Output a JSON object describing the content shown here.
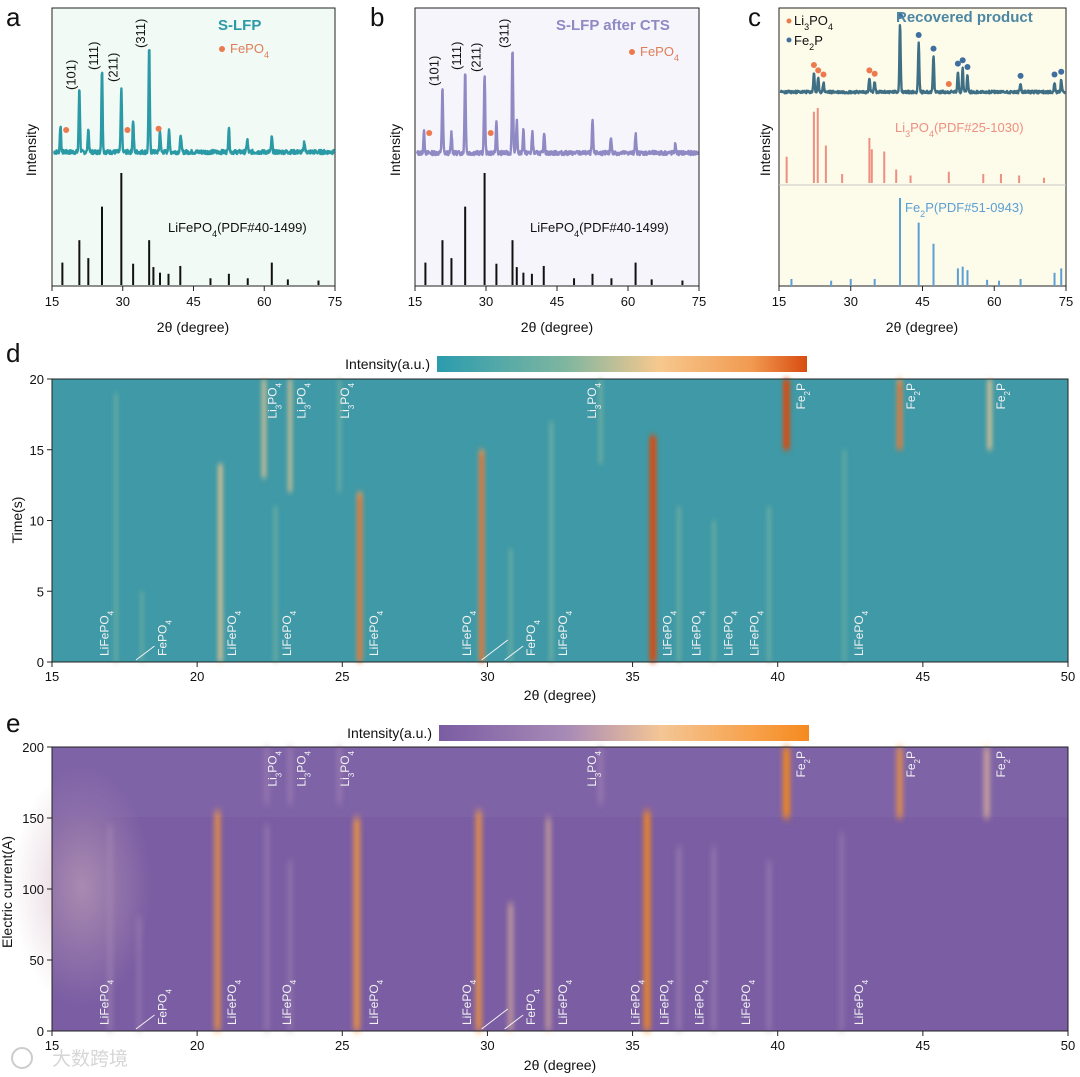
{
  "panels": {
    "a": {
      "letter": "a",
      "title": "S-LFP",
      "legend": "FePO4",
      "hkl": [
        "(101)",
        "(111)",
        "(211)",
        "(311)"
      ],
      "reference": "LiFePO4(PDF#40-1499)",
      "ylabel": "Intensity",
      "xlabel": "2θ (degree)",
      "xticks": [
        "15",
        "30",
        "45",
        "60",
        "75"
      ]
    },
    "b": {
      "letter": "b",
      "title": "S-LFP after CTS",
      "legend": "FePO4",
      "hkl": [
        "(101)",
        "(111)",
        "(211)",
        "(311)"
      ],
      "reference": "LiFePO4(PDF#40-1499)",
      "ylabel": "Intensity",
      "xlabel": "2θ (degree)",
      "xticks": [
        "15",
        "30",
        "45",
        "60",
        "75"
      ]
    },
    "c": {
      "letter": "c",
      "title": "Recovered product",
      "legend": [
        "Li3PO4",
        "Fe2P"
      ],
      "reference_1": "Li3PO4(PDF#25-1030)",
      "reference_2": "Fe2P(PDF#51-0943)",
      "ylabel": "Intensity",
      "xlabel": "2θ (degree)",
      "xticks": [
        "15",
        "30",
        "45",
        "60",
        "75"
      ]
    },
    "d": {
      "letter": "d",
      "colorbar_label": "Intensity(a.u.)",
      "ylabel": "Time(s)",
      "xlabel": "2θ (degree)",
      "xticks": [
        "15",
        "20",
        "25",
        "30",
        "35",
        "40",
        "45",
        "50"
      ],
      "yticks": [
        "0",
        "5",
        "10",
        "15",
        "20"
      ]
    },
    "e": {
      "letter": "e",
      "colorbar_label": "Intensity(a.u.)",
      "ylabel": "Electric current(A)",
      "xlabel": "2θ (degree)",
      "xticks": [
        "15",
        "20",
        "25",
        "30",
        "35",
        "40",
        "45",
        "50"
      ],
      "yticks": [
        "0",
        "50",
        "100",
        "150",
        "200"
      ]
    }
  },
  "watermark": "大数跨境",
  "colors": {
    "teal": "#2a9aa6",
    "lavender": "#8f89c4",
    "slate": "#3f6f84",
    "dot": "#ec7a4e",
    "ref_red": "#ef8f80",
    "ref_blue": "#5b9fd4",
    "map_d_bg": "#3f99a6",
    "map_e_bg": "#7a5da3"
  },
  "chart_data": [
    {
      "panel": "a",
      "type": "line",
      "title": "S-LFP",
      "xlabel": "2θ (degree)",
      "ylabel": "Intensity",
      "xlim": [
        15,
        75
      ],
      "peaks": [
        {
          "x": 16.8,
          "h": 0.25
        },
        {
          "x": 20.8,
          "h": 0.62
        },
        {
          "x": 22.7,
          "h": 0.22
        },
        {
          "x": 25.6,
          "h": 0.78
        },
        {
          "x": 29.7,
          "h": 0.6
        },
        {
          "x": 32.2,
          "h": 0.3
        },
        {
          "x": 35.6,
          "h": 1.0
        },
        {
          "x": 37.9,
          "h": 0.2
        },
        {
          "x": 39.8,
          "h": 0.22
        },
        {
          "x": 42.3,
          "h": 0.17
        },
        {
          "x": 52.5,
          "h": 0.24
        },
        {
          "x": 56.4,
          "h": 0.12
        },
        {
          "x": 61.6,
          "h": 0.14
        },
        {
          "x": 68.5,
          "h": 0.1
        }
      ],
      "fepo4_markers": [
        18.0,
        31.0,
        37.6
      ],
      "reference_sticks": [
        {
          "x": 17.2,
          "h": 0.2
        },
        {
          "x": 20.8,
          "h": 0.4
        },
        {
          "x": 22.7,
          "h": 0.24
        },
        {
          "x": 25.6,
          "h": 0.7
        },
        {
          "x": 29.7,
          "h": 1.0
        },
        {
          "x": 32.2,
          "h": 0.19
        },
        {
          "x": 35.6,
          "h": 0.4
        },
        {
          "x": 36.5,
          "h": 0.16
        },
        {
          "x": 37.9,
          "h": 0.11
        },
        {
          "x": 39.7,
          "h": 0.1
        },
        {
          "x": 42.2,
          "h": 0.17
        },
        {
          "x": 48.6,
          "h": 0.06
        },
        {
          "x": 52.5,
          "h": 0.1
        },
        {
          "x": 56.5,
          "h": 0.06
        },
        {
          "x": 61.6,
          "h": 0.2
        },
        {
          "x": 65.0,
          "h": 0.05
        },
        {
          "x": 71.5,
          "h": 0.04
        }
      ]
    },
    {
      "panel": "b",
      "type": "line",
      "title": "S-LFP after CTS",
      "xlabel": "2θ (degree)",
      "ylabel": "Intensity",
      "xlim": [
        15,
        75
      ],
      "peaks": [
        {
          "x": 16.9,
          "h": 0.2
        },
        {
          "x": 20.8,
          "h": 0.62
        },
        {
          "x": 22.7,
          "h": 0.2
        },
        {
          "x": 25.6,
          "h": 0.78
        },
        {
          "x": 29.7,
          "h": 0.75
        },
        {
          "x": 32.2,
          "h": 0.3
        },
        {
          "x": 35.6,
          "h": 1.0
        },
        {
          "x": 36.5,
          "h": 0.3
        },
        {
          "x": 37.9,
          "h": 0.22
        },
        {
          "x": 39.8,
          "h": 0.2
        },
        {
          "x": 42.3,
          "h": 0.2
        },
        {
          "x": 52.5,
          "h": 0.3
        },
        {
          "x": 56.4,
          "h": 0.16
        },
        {
          "x": 61.6,
          "h": 0.18
        },
        {
          "x": 70.0,
          "h": 0.08
        }
      ],
      "fepo4_markers": [
        18.0,
        31.0
      ],
      "reference_sticks": [
        {
          "x": 17.2,
          "h": 0.2
        },
        {
          "x": 20.8,
          "h": 0.4
        },
        {
          "x": 22.7,
          "h": 0.24
        },
        {
          "x": 25.6,
          "h": 0.7
        },
        {
          "x": 29.7,
          "h": 1.0
        },
        {
          "x": 32.2,
          "h": 0.19
        },
        {
          "x": 35.6,
          "h": 0.4
        },
        {
          "x": 36.5,
          "h": 0.16
        },
        {
          "x": 37.9,
          "h": 0.11
        },
        {
          "x": 39.7,
          "h": 0.1
        },
        {
          "x": 42.2,
          "h": 0.17
        },
        {
          "x": 48.6,
          "h": 0.06
        },
        {
          "x": 52.5,
          "h": 0.1
        },
        {
          "x": 56.5,
          "h": 0.06
        },
        {
          "x": 61.6,
          "h": 0.2
        },
        {
          "x": 65.0,
          "h": 0.05
        },
        {
          "x": 71.5,
          "h": 0.04
        }
      ]
    },
    {
      "panel": "c",
      "type": "line",
      "title": "Recovered product",
      "xlabel": "2θ (degree)",
      "ylabel": "Intensity",
      "xlim": [
        15,
        75
      ],
      "peaks": [
        {
          "x": 22.3,
          "h": 0.28
        },
        {
          "x": 23.2,
          "h": 0.2
        },
        {
          "x": 24.3,
          "h": 0.14
        },
        {
          "x": 33.9,
          "h": 0.2
        },
        {
          "x": 35.0,
          "h": 0.15
        },
        {
          "x": 40.3,
          "h": 1.0
        },
        {
          "x": 44.2,
          "h": 0.72
        },
        {
          "x": 47.3,
          "h": 0.52
        },
        {
          "x": 52.4,
          "h": 0.3
        },
        {
          "x": 53.4,
          "h": 0.35
        },
        {
          "x": 54.4,
          "h": 0.25
        },
        {
          "x": 65.5,
          "h": 0.12
        },
        {
          "x": 72.6,
          "h": 0.14
        },
        {
          "x": 74.0,
          "h": 0.18
        }
      ],
      "li3po4_markers": [
        22.3,
        23.2,
        24.3,
        33.9,
        35.0,
        50.5
      ],
      "fe2p_markers": [
        40.3,
        44.2,
        47.3,
        52.4,
        53.4,
        54.4,
        65.5,
        72.6,
        74.0
      ],
      "li3po4_sticks": [
        {
          "x": 16.6,
          "h": 0.35
        },
        {
          "x": 22.3,
          "h": 0.95
        },
        {
          "x": 23.1,
          "h": 1.0
        },
        {
          "x": 24.8,
          "h": 0.5
        },
        {
          "x": 28.2,
          "h": 0.12
        },
        {
          "x": 33.9,
          "h": 0.6
        },
        {
          "x": 34.4,
          "h": 0.45
        },
        {
          "x": 37.0,
          "h": 0.42
        },
        {
          "x": 39.5,
          "h": 0.18
        },
        {
          "x": 42.5,
          "h": 0.1
        },
        {
          "x": 50.5,
          "h": 0.15
        },
        {
          "x": 57.7,
          "h": 0.12
        },
        {
          "x": 61.4,
          "h": 0.12
        },
        {
          "x": 65.2,
          "h": 0.1
        },
        {
          "x": 70.4,
          "h": 0.07
        }
      ],
      "fe2p_sticks": [
        {
          "x": 17.6,
          "h": 0.08
        },
        {
          "x": 25.9,
          "h": 0.06
        },
        {
          "x": 30.0,
          "h": 0.08
        },
        {
          "x": 35.0,
          "h": 0.08
        },
        {
          "x": 40.3,
          "h": 1.0
        },
        {
          "x": 44.2,
          "h": 0.72
        },
        {
          "x": 47.3,
          "h": 0.48
        },
        {
          "x": 52.4,
          "h": 0.2
        },
        {
          "x": 53.4,
          "h": 0.22
        },
        {
          "x": 54.4,
          "h": 0.18
        },
        {
          "x": 58.5,
          "h": 0.07
        },
        {
          "x": 61.0,
          "h": 0.06
        },
        {
          "x": 65.5,
          "h": 0.08
        },
        {
          "x": 72.6,
          "h": 0.15
        },
        {
          "x": 74.0,
          "h": 0.2
        }
      ]
    },
    {
      "panel": "d",
      "type": "heatmap",
      "xlabel": "2θ (degree)",
      "ylabel": "Time(s)",
      "xlim": [
        15,
        50
      ],
      "ylim": [
        0,
        20
      ],
      "colorscale": [
        "#2b9cae",
        "#7fb6a0",
        "#f7c88e",
        "#f19a50",
        "#d94c10"
      ],
      "bands": [
        {
          "x": 17.2,
          "from": 0,
          "to": 19,
          "i": 0.25
        },
        {
          "x": 18.1,
          "from": 0,
          "to": 5,
          "i": 0.18
        },
        {
          "x": 20.8,
          "from": 0,
          "to": 14,
          "i": 0.55
        },
        {
          "x": 22.3,
          "from": 13,
          "to": 20,
          "i": 0.45
        },
        {
          "x": 22.7,
          "from": 0,
          "to": 11,
          "i": 0.3
        },
        {
          "x": 23.2,
          "from": 12,
          "to": 20,
          "i": 0.4
        },
        {
          "x": 24.9,
          "from": 12,
          "to": 20,
          "i": 0.25
        },
        {
          "x": 25.6,
          "from": 0,
          "to": 12,
          "i": 0.8
        },
        {
          "x": 29.8,
          "from": 0,
          "to": 15,
          "i": 0.75
        },
        {
          "x": 30.8,
          "from": 0,
          "to": 8,
          "i": 0.25
        },
        {
          "x": 32.2,
          "from": 0,
          "to": 17,
          "i": 0.35
        },
        {
          "x": 33.9,
          "from": 14,
          "to": 20,
          "i": 0.35
        },
        {
          "x": 35.7,
          "from": 0,
          "to": 16,
          "i": 1.0
        },
        {
          "x": 36.6,
          "from": 0,
          "to": 11,
          "i": 0.3
        },
        {
          "x": 37.8,
          "from": 0,
          "to": 10,
          "i": 0.25
        },
        {
          "x": 39.7,
          "from": 0,
          "to": 11,
          "i": 0.3
        },
        {
          "x": 40.3,
          "from": 15,
          "to": 20,
          "i": 1.0
        },
        {
          "x": 42.3,
          "from": 0,
          "to": 15,
          "i": 0.2
        },
        {
          "x": 44.2,
          "from": 15,
          "to": 20,
          "i": 0.75
        },
        {
          "x": 47.3,
          "from": 15,
          "to": 20,
          "i": 0.55
        }
      ],
      "labels_bottom": [
        {
          "x": 16.8,
          "text": "LiFePO4"
        },
        {
          "x": 18.8,
          "text": "FePO4"
        },
        {
          "x": 21.2,
          "text": "LiFePO4"
        },
        {
          "x": 23.1,
          "text": "LiFePO4"
        },
        {
          "x": 26.1,
          "text": "LiFePO4"
        },
        {
          "x": 29.3,
          "text": "LiFePO4"
        },
        {
          "x": 31.5,
          "text": "FePO4"
        },
        {
          "x": 32.6,
          "text": "LiFePO4"
        },
        {
          "x": 36.2,
          "text": "LiFePO4"
        },
        {
          "x": 37.2,
          "text": "LiFePO4"
        },
        {
          "x": 38.3,
          "text": "LiFePO4"
        },
        {
          "x": 39.2,
          "text": "LiFePO4"
        },
        {
          "x": 42.8,
          "text": "LiFePO4"
        }
      ],
      "labels_top": [
        {
          "x": 22.6,
          "text": "Li3PO4"
        },
        {
          "x": 23.6,
          "text": "Li3PO4"
        },
        {
          "x": 25.1,
          "text": "Li3PO4"
        },
        {
          "x": 33.6,
          "text": "Li3PO4"
        },
        {
          "x": 40.8,
          "text": "Fe2P"
        },
        {
          "x": 44.6,
          "text": "Fe2P"
        },
        {
          "x": 47.7,
          "text": "Fe2P"
        }
      ]
    },
    {
      "panel": "e",
      "type": "heatmap",
      "xlabel": "2θ (degree)",
      "ylabel": "Electric current(A)",
      "xlim": [
        15,
        50
      ],
      "ylim": [
        0,
        200
      ],
      "colorscale": [
        "#7a5ca3",
        "#a98bb7",
        "#f4c695",
        "#f7a14a",
        "#f58a1f"
      ],
      "bands": [
        {
          "x": 17.0,
          "from": 0,
          "to": 145,
          "i": 0.3
        },
        {
          "x": 18.0,
          "from": 0,
          "to": 80,
          "i": 0.2
        },
        {
          "x": 20.7,
          "from": 0,
          "to": 155,
          "i": 0.7
        },
        {
          "x": 22.4,
          "from": 0,
          "to": 145,
          "i": 0.3
        },
        {
          "x": 23.2,
          "from": 0,
          "to": 120,
          "i": 0.25
        },
        {
          "x": 25.5,
          "from": 0,
          "to": 150,
          "i": 0.85
        },
        {
          "x": 29.7,
          "from": 0,
          "to": 155,
          "i": 0.75
        },
        {
          "x": 30.8,
          "from": 0,
          "to": 90,
          "i": 0.4
        },
        {
          "x": 32.1,
          "from": 0,
          "to": 150,
          "i": 0.4
        },
        {
          "x": 35.5,
          "from": 0,
          "to": 155,
          "i": 0.9
        },
        {
          "x": 36.6,
          "from": 0,
          "to": 130,
          "i": 0.35
        },
        {
          "x": 37.8,
          "from": 0,
          "to": 130,
          "i": 0.3
        },
        {
          "x": 39.7,
          "from": 0,
          "to": 120,
          "i": 0.3
        },
        {
          "x": 42.2,
          "from": 0,
          "to": 140,
          "i": 0.2
        },
        {
          "x": 22.4,
          "from": 160,
          "to": 200,
          "i": 0.3
        },
        {
          "x": 23.2,
          "from": 160,
          "to": 200,
          "i": 0.3
        },
        {
          "x": 24.9,
          "from": 160,
          "to": 200,
          "i": 0.3
        },
        {
          "x": 33.9,
          "from": 160,
          "to": 200,
          "i": 0.35
        },
        {
          "x": 40.3,
          "from": 150,
          "to": 200,
          "i": 1.0
        },
        {
          "x": 44.2,
          "from": 150,
          "to": 200,
          "i": 0.7
        },
        {
          "x": 47.2,
          "from": 150,
          "to": 200,
          "i": 0.55
        }
      ],
      "labels_bottom": [
        {
          "x": 16.8,
          "text": "LiFePO4"
        },
        {
          "x": 18.8,
          "text": "FePO4"
        },
        {
          "x": 21.2,
          "text": "LiFePO4"
        },
        {
          "x": 23.1,
          "text": "LiFePO4"
        },
        {
          "x": 26.1,
          "text": "LiFePO4"
        },
        {
          "x": 29.3,
          "text": "LiFePO4"
        },
        {
          "x": 31.5,
          "text": "FePO4"
        },
        {
          "x": 32.6,
          "text": "LiFePO4"
        },
        {
          "x": 35.1,
          "text": "LiFePO4"
        },
        {
          "x": 36.1,
          "text": "LiFePO4"
        },
        {
          "x": 37.3,
          "text": "LiFePO4"
        },
        {
          "x": 38.9,
          "text": "LiFePO4"
        },
        {
          "x": 42.8,
          "text": "LiFePO4"
        }
      ],
      "labels_top": [
        {
          "x": 22.6,
          "text": "Li3PO4"
        },
        {
          "x": 23.6,
          "text": "Li3PO4"
        },
        {
          "x": 25.1,
          "text": "Li3PO4"
        },
        {
          "x": 33.6,
          "text": "Li3PO4"
        },
        {
          "x": 40.8,
          "text": "Fe2P"
        },
        {
          "x": 44.6,
          "text": "Fe2P"
        },
        {
          "x": 47.7,
          "text": "Fe2P"
        }
      ]
    }
  ]
}
